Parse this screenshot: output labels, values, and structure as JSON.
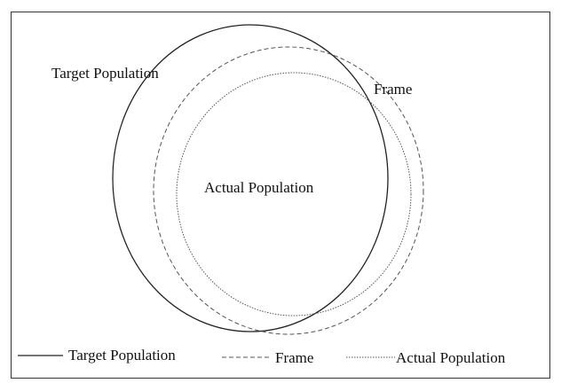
{
  "labels": {
    "target": "Target Population",
    "frame": "Frame",
    "actual": "Actual Population"
  },
  "legend": {
    "target": "Target Population",
    "frame": "Frame",
    "actual": "Actual Population"
  }
}
